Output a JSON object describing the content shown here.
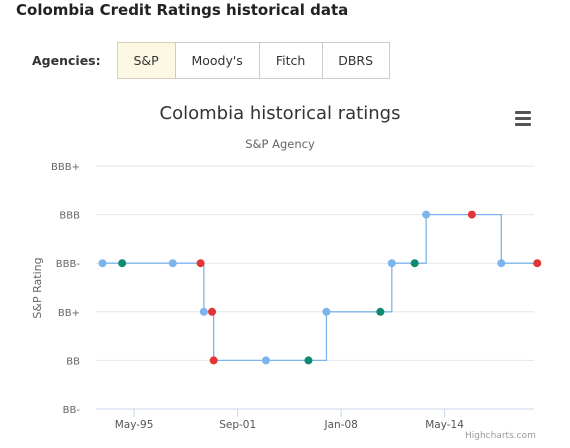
{
  "page": {
    "title": "Colombia Credit Ratings historical data"
  },
  "agencies": {
    "label": "Agencies:",
    "tabs": [
      {
        "label": "S&P",
        "active": true
      },
      {
        "label": "Moody's",
        "active": false
      },
      {
        "label": "Fitch",
        "active": false
      },
      {
        "label": "DBRS",
        "active": false
      }
    ]
  },
  "chart": {
    "menu_icon": "hamburger-menu-icon",
    "credits": "Highcharts.com"
  },
  "chart_data": {
    "type": "line",
    "step": true,
    "title": "Colombia historical ratings",
    "subtitle": "S&P Agency",
    "ylabel": "S&P Rating",
    "xlabel": "",
    "y_categories": [
      "BB-",
      "BB",
      "BB+",
      "BBB-",
      "BBB",
      "BBB+"
    ],
    "x_ticks": [
      {
        "label": "May-95",
        "year": 1995.33
      },
      {
        "label": "Sep-01",
        "year": 2001.67
      },
      {
        "label": "Jan-08",
        "year": 2008.0
      },
      {
        "label": "May-14",
        "year": 2014.33
      }
    ],
    "xlim": [
      1993.0,
      2019.8
    ],
    "ylim": [
      "BB-",
      "BBB+"
    ],
    "grid": true,
    "legend": "none",
    "point_colors": {
      "line": "#7cb5ec",
      "affirmed": "#7cb5ec",
      "upgrade": "#0d8a6f",
      "downgrade": "#e23636"
    },
    "points": [
      {
        "year": 1993.4,
        "rating": "BBB-",
        "kind": "affirmed"
      },
      {
        "year": 1994.6,
        "rating": "BBB-",
        "kind": "upgrade"
      },
      {
        "year": 1997.7,
        "rating": "BBB-",
        "kind": "affirmed"
      },
      {
        "year": 1999.4,
        "rating": "BBB-",
        "kind": "downgrade"
      },
      {
        "year": 1999.6,
        "rating": "BB+",
        "kind": "affirmed"
      },
      {
        "year": 2000.1,
        "rating": "BB+",
        "kind": "downgrade"
      },
      {
        "year": 2000.2,
        "rating": "BB",
        "kind": "downgrade"
      },
      {
        "year": 2003.4,
        "rating": "BB",
        "kind": "affirmed"
      },
      {
        "year": 2006.0,
        "rating": "BB",
        "kind": "upgrade"
      },
      {
        "year": 2007.1,
        "rating": "BB+",
        "kind": "affirmed"
      },
      {
        "year": 2010.4,
        "rating": "BB+",
        "kind": "upgrade"
      },
      {
        "year": 2011.1,
        "rating": "BBB-",
        "kind": "affirmed"
      },
      {
        "year": 2012.5,
        "rating": "BBB-",
        "kind": "upgrade"
      },
      {
        "year": 2013.2,
        "rating": "BBB",
        "kind": "affirmed"
      },
      {
        "year": 2016.0,
        "rating": "BBB",
        "kind": "downgrade"
      },
      {
        "year": 2017.8,
        "rating": "BBB-",
        "kind": "affirmed"
      },
      {
        "year": 2020.0,
        "rating": "BBB-",
        "kind": "downgrade"
      }
    ]
  }
}
